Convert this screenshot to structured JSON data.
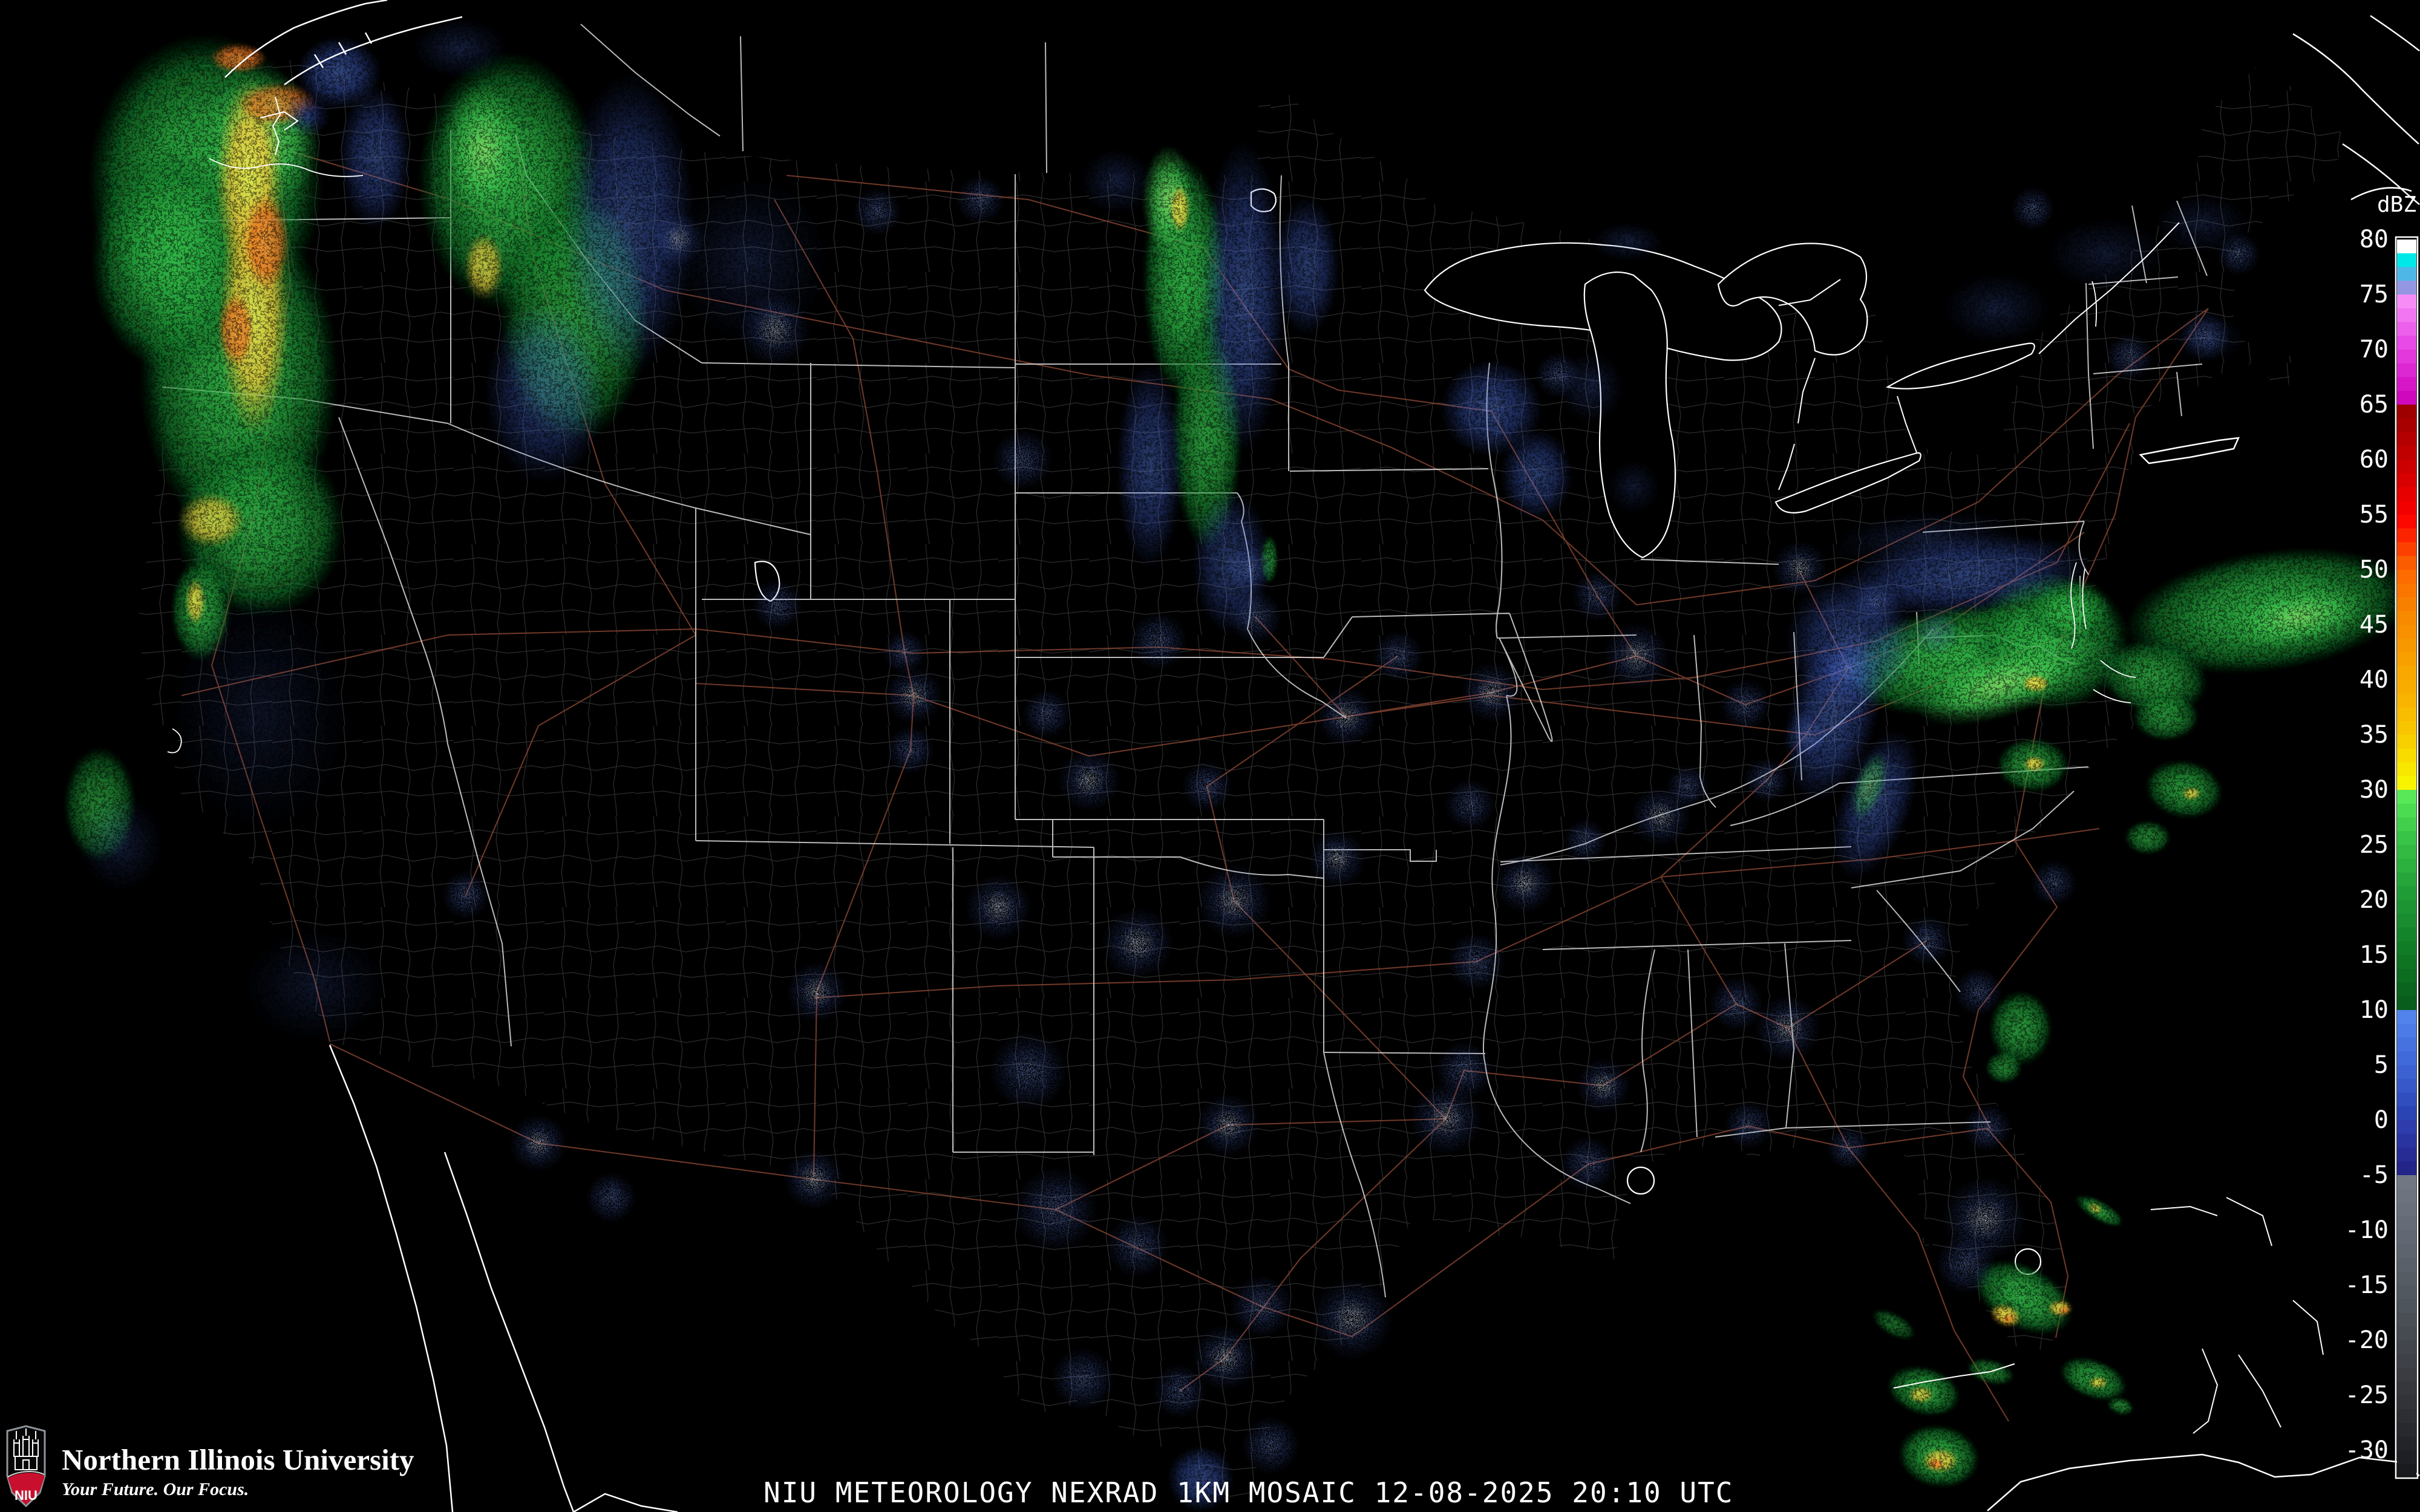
{
  "caption": {
    "text": "NIU METEOROLOGY NEXRAD 1KM MOSAIC  12-08-2025 20:10 UTC"
  },
  "branding": {
    "university": "Northern Illinois University",
    "tagline": "Your Future. Our Focus.",
    "abbr": "NIU"
  },
  "colorbar": {
    "title": "dBZ",
    "unit": "dBZ",
    "top_value": 80,
    "bottom_value": -30,
    "step": -5,
    "bands": [
      {
        "v": 80,
        "colors": [
          "#FFFFFF",
          "#00E8E8",
          "#4FB6E8",
          "#9596E2"
        ]
      },
      {
        "v": 75,
        "colors": [
          "#F78CF7",
          "#F276F2",
          "#EC60EC",
          "#E74AE7"
        ]
      },
      {
        "v": 70,
        "colors": [
          "#E238DC",
          "#DC28D2",
          "#D517C8",
          "#CF08BE"
        ]
      },
      {
        "v": 65,
        "colors": [
          "#9E0000",
          "#A80000",
          "#B40000",
          "#C00000"
        ]
      },
      {
        "v": 60,
        "colors": [
          "#CC0000",
          "#D80000",
          "#E60000",
          "#F20000"
        ]
      },
      {
        "v": 55,
        "colors": [
          "#FC0800",
          "#FC2400",
          "#FC4000",
          "#FC5C00"
        ]
      },
      {
        "v": 50,
        "colors": [
          "#FC6C00",
          "#FA7600",
          "#F88000",
          "#F88A00"
        ]
      },
      {
        "v": 45,
        "colors": [
          "#F89000",
          "#F89800",
          "#F8A000",
          "#F8A800"
        ]
      },
      {
        "v": 40,
        "colors": [
          "#F8AC00",
          "#F8B400",
          "#F8BC00",
          "#F8C600"
        ]
      },
      {
        "v": 35,
        "colors": [
          "#F8D000",
          "#F8DC00",
          "#F8E800",
          "#F8F400"
        ]
      },
      {
        "v": 30,
        "colors": [
          "#58E858",
          "#4CDC52",
          "#42D04C",
          "#38C446"
        ]
      },
      {
        "v": 25,
        "colors": [
          "#32BA42",
          "#2CB03E",
          "#26A63A",
          "#209C36"
        ]
      },
      {
        "v": 20,
        "colors": [
          "#1C9432",
          "#188C2E",
          "#14842A",
          "#107C26"
        ]
      },
      {
        "v": 15,
        "colors": [
          "#0E7422",
          "#0C6C20",
          "#0A641E",
          "#085C1C"
        ]
      },
      {
        "v": 10,
        "colors": [
          "#5282EC",
          "#4C7AE6",
          "#4672E0",
          "#406ADA"
        ]
      },
      {
        "v": 5,
        "colors": [
          "#3C62D2",
          "#3658C8",
          "#304EBE",
          "#2A44B4"
        ]
      },
      {
        "v": 0,
        "colors": [
          "#2E3CAC",
          "#2A34A0",
          "#262C94",
          "#222488"
        ]
      },
      {
        "v": -5,
        "colors": [
          "#717883",
          "#6D747F",
          "#69707B",
          "#656C77"
        ]
      },
      {
        "v": -10,
        "colors": [
          "#616873",
          "#5E646E",
          "#5A6069",
          "#565C64"
        ]
      },
      {
        "v": -15,
        "colors": [
          "#525860",
          "#4E545B",
          "#4A4F56",
          "#464A51"
        ]
      },
      {
        "v": -20,
        "colors": [
          "#42464C",
          "#3E4147",
          "#3A3C42",
          "#36373D"
        ]
      },
      {
        "v": -25,
        "colors": [
          "#323338",
          "#2D2E33",
          "#28292E",
          "#232429"
        ]
      },
      {
        "v": -30,
        "colors": [
          "#1E1F24",
          "#191A1E",
          "#141519",
          "#0F1014"
        ]
      }
    ]
  },
  "map_colors": {
    "background": "#000000",
    "coastline": "#FFFFFF",
    "state_border": "#DCDCDC",
    "county": "#474747",
    "highway": "#8A4632",
    "water": "#000000",
    "brand_red": "#C8102E"
  },
  "radar_echoes": {
    "rain": [
      [
        "g",
        340,
        300,
        195,
        245,
        0,
        0.95
      ],
      [
        "g",
        395,
        620,
        165,
        270,
        0,
        0.92
      ],
      [
        "g",
        285,
        430,
        135,
        185,
        0,
        0.9
      ],
      [
        "g",
        430,
        870,
        140,
        150,
        0,
        0.85
      ],
      [
        "gb",
        430,
        230,
        100,
        120,
        0,
        0.85
      ],
      [
        "y",
        412,
        300,
        55,
        170,
        0,
        0.9
      ],
      [
        "y",
        420,
        520,
        58,
        200,
        0,
        0.88
      ],
      [
        "y",
        350,
        860,
        55,
        45,
        0,
        0.75
      ],
      [
        "o",
        394,
        96,
        46,
        24,
        0,
        0.85
      ],
      [
        "o",
        458,
        172,
        66,
        36,
        0,
        0.8
      ],
      [
        "o",
        440,
        400,
        38,
        80,
        0,
        0.85
      ],
      [
        "o",
        390,
        545,
        30,
        60,
        0,
        0.8
      ],
      [
        "nv",
        508,
        190,
        40,
        36,
        0,
        0.85
      ],
      [
        "b",
        560,
        120,
        70,
        60,
        0,
        0.6
      ],
      [
        "b",
        620,
        260,
        60,
        120,
        0,
        0.5
      ],
      [
        "g",
        840,
        300,
        150,
        215,
        0,
        0.9
      ],
      [
        "g",
        950,
        520,
        125,
        210,
        0,
        0.8
      ],
      [
        "gb",
        800,
        250,
        70,
        115,
        0,
        0.8
      ],
      [
        "y",
        800,
        440,
        32,
        55,
        0,
        0.75
      ],
      [
        "b",
        1040,
        370,
        110,
        250,
        0,
        0.5
      ],
      [
        "b",
        900,
        650,
        100,
        150,
        0,
        0.45
      ],
      [
        "bs",
        760,
        80,
        80,
        50,
        0,
        0.5
      ],
      [
        "bs",
        1240,
        430,
        130,
        140,
        0,
        0.4
      ],
      [
        "g",
        1958,
        460,
        70,
        200,
        0,
        0.92
      ],
      [
        "g",
        1995,
        720,
        58,
        190,
        0,
        0.8
      ],
      [
        "gb",
        1932,
        330,
        45,
        90,
        0,
        0.88
      ],
      [
        "y",
        1950,
        345,
        16,
        40,
        0,
        0.85
      ],
      [
        "b",
        2055,
        490,
        70,
        260,
        0,
        0.55
      ],
      [
        "b",
        1900,
        770,
        55,
        170,
        0,
        0.5
      ],
      [
        "b",
        2035,
        930,
        65,
        120,
        0,
        0.45
      ],
      [
        "bs",
        1845,
        300,
        60,
        55,
        0,
        0.5
      ],
      [
        "g",
        2098,
        925,
        14,
        40,
        0,
        0.7
      ],
      [
        "b",
        2160,
        440,
        55,
        115,
        0,
        0.5
      ],
      [
        "b",
        2465,
        675,
        85,
        80,
        0,
        0.55
      ],
      [
        "b",
        2540,
        785,
        60,
        75,
        0,
        0.5
      ],
      [
        "bs",
        2630,
        640,
        55,
        60,
        0,
        0.5
      ],
      [
        "bs",
        2690,
        400,
        60,
        32,
        0,
        0.5
      ],
      [
        "bs",
        2700,
        805,
        45,
        45,
        0,
        0.4
      ],
      [
        "bs",
        3300,
        510,
        90,
        60,
        0,
        0.45
      ],
      [
        "bs",
        3480,
        420,
        100,
        60,
        0,
        0.4
      ],
      [
        "bs",
        3640,
        370,
        80,
        50,
        0,
        0.4
      ],
      [
        "bs",
        3650,
        560,
        60,
        40,
        0,
        0.35
      ],
      [
        "g",
        3240,
        1090,
        200,
        90,
        -8,
        0.95
      ],
      [
        "g",
        3390,
        1060,
        130,
        115,
        0,
        0.9
      ],
      [
        "gb",
        3310,
        1130,
        150,
        55,
        -18,
        0.85
      ],
      [
        "y",
        3365,
        1130,
        22,
        14,
        0,
        0.9
      ],
      [
        "g",
        3420,
        1010,
        70,
        50,
        0,
        0.85
      ],
      [
        "g",
        3750,
        1010,
        240,
        100,
        -8,
        0.9
      ],
      [
        "gb",
        3800,
        1020,
        120,
        50,
        -10,
        0.75
      ],
      [
        "g",
        3560,
        1120,
        90,
        60,
        10,
        0.8
      ],
      [
        "b",
        3250,
        950,
        210,
        65,
        -5,
        0.55
      ],
      [
        "b",
        3060,
        1060,
        110,
        110,
        0,
        0.5
      ],
      [
        "b",
        3030,
        1180,
        75,
        150,
        15,
        0.55
      ],
      [
        "b",
        3100,
        1330,
        60,
        130,
        20,
        0.5
      ],
      [
        "gb",
        3090,
        1300,
        25,
        60,
        20,
        0.55
      ],
      [
        "g",
        3360,
        1265,
        60,
        45,
        0,
        0.8
      ],
      [
        "y",
        3363,
        1263,
        18,
        12,
        0,
        0.85
      ],
      [
        "g",
        3580,
        1185,
        55,
        40,
        0,
        0.75
      ],
      [
        "g",
        3610,
        1305,
        65,
        48,
        10,
        0.8
      ],
      [
        "y",
        3622,
        1312,
        15,
        10,
        0,
        0.8
      ],
      [
        "g",
        3550,
        1385,
        38,
        28,
        0,
        0.7
      ],
      [
        "bs",
        3180,
        890,
        160,
        45,
        -5,
        0.45
      ],
      [
        "g",
        3340,
        1700,
        52,
        62,
        0,
        0.8
      ],
      [
        "g",
        3312,
        1765,
        30,
        26,
        0,
        0.7
      ],
      [
        "g",
        3345,
        2145,
        88,
        52,
        28,
        0.9
      ],
      [
        "y",
        3315,
        2175,
        26,
        18,
        20,
        0.9
      ],
      [
        "o",
        3320,
        2180,
        10,
        7,
        0,
        0.85
      ],
      [
        "y",
        3405,
        2163,
        20,
        13,
        0,
        0.85
      ],
      [
        "o",
        3412,
        2166,
        9,
        6,
        0,
        0.8
      ],
      [
        "g",
        3180,
        2300,
        62,
        40,
        15,
        0.85
      ],
      [
        "y",
        3175,
        2306,
        20,
        13,
        0,
        0.8
      ],
      [
        "g",
        3205,
        2408,
        68,
        52,
        10,
        0.9
      ],
      [
        "y",
        3207,
        2415,
        30,
        20,
        0,
        0.85
      ],
      [
        "o",
        3200,
        2420,
        13,
        9,
        0,
        0.85
      ],
      [
        "g",
        3290,
        2268,
        40,
        20,
        15,
        0.7
      ],
      [
        "g",
        3460,
        2280,
        58,
        32,
        20,
        0.85
      ],
      [
        "y",
        3468,
        2286,
        15,
        9,
        0,
        0.8
      ],
      [
        "g",
        3505,
        2325,
        22,
        14,
        15,
        0.7
      ],
      [
        "g",
        3470,
        2002,
        45,
        16,
        30,
        0.8
      ],
      [
        "y",
        3463,
        1998,
        12,
        7,
        30,
        0.7
      ],
      [
        "g",
        3130,
        2190,
        40,
        18,
        30,
        0.6
      ],
      [
        "g",
        332,
        1008,
        50,
        85,
        0,
        0.85
      ],
      [
        "y",
        323,
        995,
        16,
        38,
        0,
        0.8
      ],
      [
        "g",
        165,
        1330,
        60,
        95,
        0,
        0.7
      ],
      [
        "bs",
        200,
        1395,
        70,
        80,
        0,
        0.45
      ],
      [
        "bs",
        430,
        1180,
        150,
        200,
        0,
        0.3
      ],
      [
        "bs",
        520,
        1630,
        120,
        95,
        0,
        0.35
      ],
      [
        "b",
        1985,
        2445,
        55,
        55,
        0,
        0.55
      ]
    ],
    "clutter_sites": [
      [
        1120,
        395,
        45,
        1
      ],
      [
        1280,
        545,
        60,
        1
      ],
      [
        1450,
        350,
        40,
        0
      ],
      [
        1620,
        330,
        40,
        0
      ],
      [
        1690,
        760,
        50,
        0
      ],
      [
        1915,
        1060,
        48,
        0
      ],
      [
        2065,
        940,
        40,
        0
      ],
      [
        1730,
        1180,
        40,
        0
      ],
      [
        1800,
        1290,
        52,
        1
      ],
      [
        1995,
        1300,
        42,
        0
      ],
      [
        1495,
        1078,
        36,
        0
      ],
      [
        1510,
        1150,
        48,
        1
      ],
      [
        1505,
        1240,
        40,
        0
      ],
      [
        1285,
        1000,
        42,
        0
      ],
      [
        1350,
        1640,
        50,
        1
      ],
      [
        1650,
        1500,
        55,
        1
      ],
      [
        1880,
        1560,
        60,
        1
      ],
      [
        1700,
        1770,
        65,
        0
      ],
      [
        1745,
        2000,
        70,
        0
      ],
      [
        1880,
        2060,
        52,
        0
      ],
      [
        2030,
        1860,
        52,
        1
      ],
      [
        2390,
        1850,
        60,
        1
      ],
      [
        2040,
        1490,
        62,
        1
      ],
      [
        2210,
        1420,
        48,
        1
      ],
      [
        2430,
        1330,
        42,
        0
      ],
      [
        2225,
        1185,
        50,
        1
      ],
      [
        2465,
        1145,
        50,
        1
      ],
      [
        2310,
        1085,
        42,
        0
      ],
      [
        2075,
        1020,
        44,
        0
      ],
      [
        2520,
        1460,
        50,
        1
      ],
      [
        2745,
        1350,
        50,
        1
      ],
      [
        2440,
        1590,
        48,
        0
      ],
      [
        2420,
        1770,
        48,
        0
      ],
      [
        2650,
        1795,
        45,
        1
      ],
      [
        2870,
        1660,
        45,
        0
      ],
      [
        2955,
        1700,
        55,
        1
      ],
      [
        3185,
        1555,
        42,
        0
      ],
      [
        3270,
        1640,
        40,
        0
      ],
      [
        3395,
        1460,
        38,
        0
      ],
      [
        3285,
        1865,
        40,
        0
      ],
      [
        3055,
        1898,
        36,
        0
      ],
      [
        2890,
        1860,
        40,
        0
      ],
      [
        2625,
        1925,
        46,
        0
      ],
      [
        2235,
        2180,
        68,
        1
      ],
      [
        2085,
        2160,
        52,
        0
      ],
      [
        2025,
        2245,
        55,
        1
      ],
      [
        2100,
        2390,
        48,
        0
      ],
      [
        1950,
        2300,
        45,
        0
      ],
      [
        1790,
        2280,
        52,
        0
      ],
      [
        1345,
        1950,
        50,
        1
      ],
      [
        1010,
        1980,
        42,
        0
      ],
      [
        890,
        1890,
        48,
        1
      ],
      [
        770,
        1480,
        40,
        0
      ],
      [
        2705,
        1085,
        55,
        1
      ],
      [
        2640,
        985,
        42,
        0
      ],
      [
        2885,
        1165,
        42,
        0
      ],
      [
        2985,
        1215,
        38,
        0
      ],
      [
        2920,
        1290,
        38,
        0
      ],
      [
        3055,
        1105,
        40,
        0
      ],
      [
        2975,
        940,
        46,
        1
      ],
      [
        3100,
        995,
        40,
        0
      ],
      [
        3200,
        1045,
        40,
        0
      ],
      [
        3360,
        345,
        36,
        0
      ],
      [
        3520,
        590,
        40,
        0
      ],
      [
        3645,
        555,
        42,
        0
      ],
      [
        3700,
        420,
        36,
        0
      ],
      [
        2620,
        1390,
        36,
        0
      ],
      [
        2790,
        1300,
        36,
        0
      ],
      [
        2575,
        620,
        38,
        0
      ],
      [
        3280,
        2015,
        70,
        1
      ],
      [
        3250,
        2090,
        50,
        0
      ]
    ]
  }
}
